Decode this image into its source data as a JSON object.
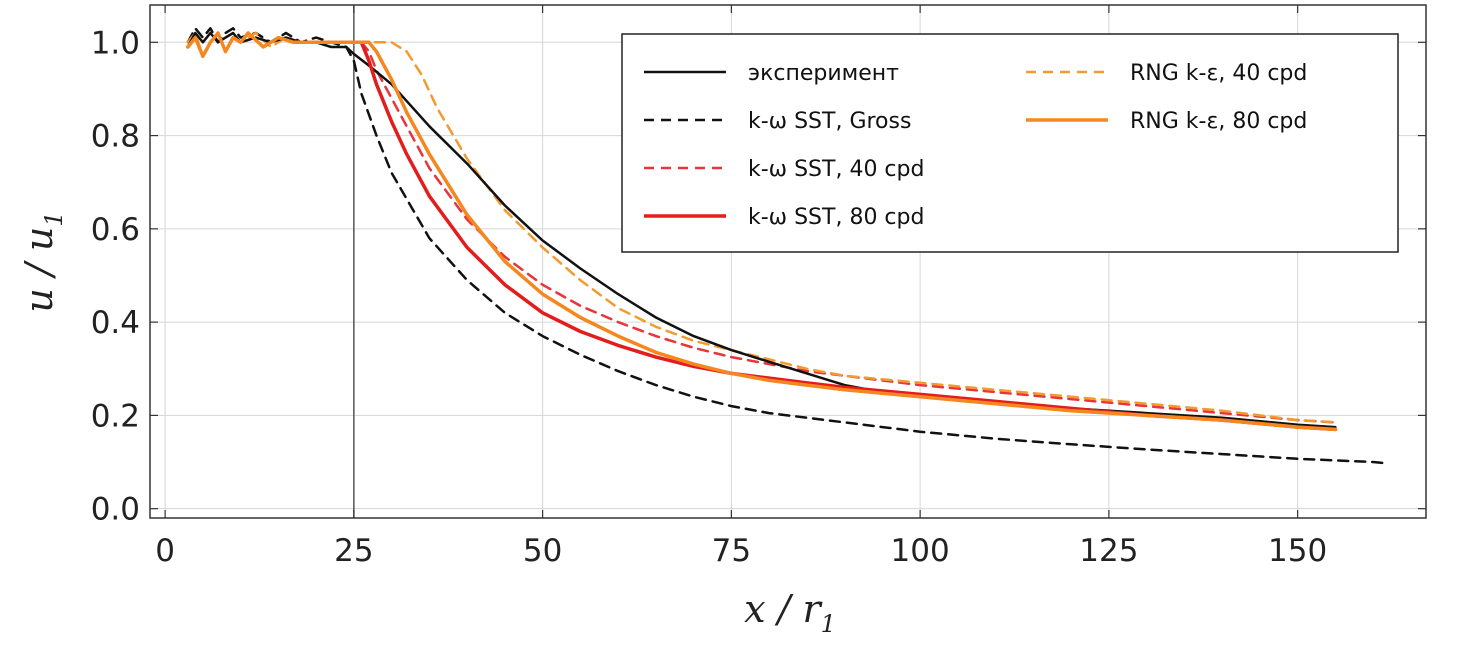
{
  "chart_data": {
    "type": "line",
    "xlabel": "x / r1",
    "ylabel": "u / u1",
    "xlabel_parts": [
      "x",
      " / ",
      "r",
      "1"
    ],
    "ylabel_parts": [
      "u",
      " / ",
      "u",
      "1"
    ],
    "xlim": [
      -2,
      167
    ],
    "ylim": [
      -0.02,
      1.08
    ],
    "xticks": [
      0,
      25,
      50,
      75,
      100,
      125,
      150
    ],
    "yticks": [
      0.0,
      0.2,
      0.4,
      0.6,
      0.8,
      1.0
    ],
    "xtick_labels": [
      "0",
      "25",
      "50",
      "75",
      "100",
      "125",
      "150"
    ],
    "ytick_labels": [
      "0.0",
      "0.2",
      "0.4",
      "0.6",
      "0.8",
      "1.0"
    ],
    "grid": true,
    "vertical_reference_line_x": 25,
    "legend_position": "top-right",
    "series": [
      {
        "name": "эксперимент",
        "color": "#111111",
        "dash": "solid",
        "width": 2.5,
        "points": [
          [
            3,
            0.99
          ],
          [
            4,
            1.02
          ],
          [
            5,
            1.0
          ],
          [
            6,
            1.02
          ],
          [
            7,
            1.0
          ],
          [
            8,
            1.01
          ],
          [
            9,
            1.02
          ],
          [
            10,
            1.0
          ],
          [
            12,
            1.01
          ],
          [
            14,
            1.0
          ],
          [
            16,
            1.01
          ],
          [
            18,
            1.0
          ],
          [
            20,
            1.0
          ],
          [
            22,
            0.99
          ],
          [
            24,
            0.99
          ],
          [
            25,
            0.975
          ],
          [
            27,
            0.95
          ],
          [
            30,
            0.91
          ],
          [
            35,
            0.82
          ],
          [
            40,
            0.74
          ],
          [
            45,
            0.65
          ],
          [
            50,
            0.575
          ],
          [
            55,
            0.515
          ],
          [
            60,
            0.46
          ],
          [
            65,
            0.41
          ],
          [
            70,
            0.37
          ],
          [
            75,
            0.34
          ],
          [
            80,
            0.315
          ],
          [
            85,
            0.29
          ],
          [
            90,
            0.265
          ],
          [
            95,
            0.25
          ],
          [
            100,
            0.245
          ],
          [
            110,
            0.23
          ],
          [
            120,
            0.215
          ],
          [
            130,
            0.205
          ],
          [
            140,
            0.195
          ],
          [
            150,
            0.18
          ],
          [
            155,
            0.175
          ]
        ]
      },
      {
        "name": "k-ω SST, Gross",
        "color": "#111111",
        "dash": "dashed",
        "width": 2.5,
        "points": [
          [
            3,
            1.0
          ],
          [
            4,
            1.03
          ],
          [
            5,
            1.01
          ],
          [
            6,
            1.03
          ],
          [
            7,
            1.0
          ],
          [
            8,
            1.02
          ],
          [
            9,
            1.03
          ],
          [
            10,
            1.01
          ],
          [
            12,
            1.02
          ],
          [
            14,
            1.0
          ],
          [
            16,
            1.02
          ],
          [
            18,
            1.0
          ],
          [
            20,
            1.01
          ],
          [
            22,
            1.0
          ],
          [
            24,
            0.99
          ],
          [
            25,
            0.96
          ],
          [
            26,
            0.89
          ],
          [
            28,
            0.8
          ],
          [
            30,
            0.72
          ],
          [
            35,
            0.58
          ],
          [
            40,
            0.49
          ],
          [
            45,
            0.42
          ],
          [
            50,
            0.37
          ],
          [
            55,
            0.33
          ],
          [
            60,
            0.295
          ],
          [
            65,
            0.265
          ],
          [
            70,
            0.24
          ],
          [
            75,
            0.22
          ],
          [
            80,
            0.205
          ],
          [
            90,
            0.185
          ],
          [
            100,
            0.165
          ],
          [
            110,
            0.15
          ],
          [
            120,
            0.138
          ],
          [
            130,
            0.127
          ],
          [
            140,
            0.117
          ],
          [
            150,
            0.107
          ],
          [
            160,
            0.1
          ],
          [
            162,
            0.097
          ]
        ]
      },
      {
        "name": "k-ω SST, 40 cpd",
        "color": "#e8343a",
        "dash": "dashed",
        "width": 2.5,
        "points": [
          [
            26,
            1.0
          ],
          [
            27,
            0.98
          ],
          [
            28,
            0.94
          ],
          [
            30,
            0.88
          ],
          [
            32,
            0.82
          ],
          [
            35,
            0.73
          ],
          [
            40,
            0.62
          ],
          [
            45,
            0.54
          ],
          [
            50,
            0.48
          ],
          [
            55,
            0.435
          ],
          [
            60,
            0.4
          ],
          [
            65,
            0.37
          ],
          [
            70,
            0.345
          ],
          [
            75,
            0.325
          ],
          [
            80,
            0.31
          ],
          [
            85,
            0.295
          ],
          [
            90,
            0.285
          ],
          [
            100,
            0.265
          ],
          [
            110,
            0.25
          ],
          [
            120,
            0.235
          ],
          [
            130,
            0.22
          ],
          [
            140,
            0.205
          ],
          [
            150,
            0.19
          ],
          [
            155,
            0.185
          ]
        ]
      },
      {
        "name": "k-ω SST, 80 cpd",
        "color": "#e31c1c",
        "dash": "solid",
        "width": 3.5,
        "points": [
          [
            26,
            1.0
          ],
          [
            27,
            0.96
          ],
          [
            28,
            0.91
          ],
          [
            30,
            0.83
          ],
          [
            32,
            0.76
          ],
          [
            35,
            0.67
          ],
          [
            40,
            0.56
          ],
          [
            45,
            0.48
          ],
          [
            50,
            0.42
          ],
          [
            55,
            0.38
          ],
          [
            60,
            0.35
          ],
          [
            65,
            0.325
          ],
          [
            70,
            0.305
          ],
          [
            75,
            0.29
          ],
          [
            80,
            0.28
          ],
          [
            85,
            0.27
          ],
          [
            90,
            0.26
          ],
          [
            100,
            0.245
          ],
          [
            110,
            0.23
          ],
          [
            120,
            0.215
          ],
          [
            130,
            0.2
          ],
          [
            140,
            0.19
          ],
          [
            150,
            0.175
          ],
          [
            155,
            0.17
          ]
        ]
      },
      {
        "name": "RNG k-ε, 40 cpd",
        "color": "#f39a2e",
        "dash": "dashed",
        "width": 2.5,
        "points": [
          [
            3,
            1.0
          ],
          [
            4,
            1.02
          ],
          [
            5,
            0.97
          ],
          [
            6,
            1.0
          ],
          [
            7,
            1.02
          ],
          [
            8,
            0.98
          ],
          [
            9,
            1.01
          ],
          [
            10,
            1.0
          ],
          [
            12,
            1.02
          ],
          [
            14,
            0.99
          ],
          [
            16,
            1.01
          ],
          [
            18,
            1.0
          ],
          [
            20,
            1.0
          ],
          [
            22,
            1.0
          ],
          [
            25,
            1.0
          ],
          [
            28,
            1.0
          ],
          [
            30,
            1.0
          ],
          [
            32,
            0.98
          ],
          [
            34,
            0.93
          ],
          [
            36,
            0.86
          ],
          [
            40,
            0.75
          ],
          [
            45,
            0.64
          ],
          [
            50,
            0.56
          ],
          [
            55,
            0.49
          ],
          [
            60,
            0.43
          ],
          [
            65,
            0.39
          ],
          [
            70,
            0.36
          ],
          [
            75,
            0.34
          ],
          [
            80,
            0.32
          ],
          [
            85,
            0.3
          ],
          [
            90,
            0.285
          ],
          [
            100,
            0.27
          ],
          [
            110,
            0.255
          ],
          [
            120,
            0.24
          ],
          [
            130,
            0.225
          ],
          [
            140,
            0.21
          ],
          [
            150,
            0.19
          ],
          [
            155,
            0.185
          ]
        ]
      },
      {
        "name": "RNG k-ε, 80 cpd",
        "color": "#f5871f",
        "dash": "solid",
        "width": 3.5,
        "points": [
          [
            3,
            0.99
          ],
          [
            4,
            1.01
          ],
          [
            5,
            0.97
          ],
          [
            6,
            1.0
          ],
          [
            7,
            1.02
          ],
          [
            8,
            0.98
          ],
          [
            9,
            1.01
          ],
          [
            10,
            1.0
          ],
          [
            11,
            1.02
          ],
          [
            13,
            0.99
          ],
          [
            15,
            1.01
          ],
          [
            17,
            1.0
          ],
          [
            19,
            1.0
          ],
          [
            22,
            1.0
          ],
          [
            25,
            1.0
          ],
          [
            27,
            1.0
          ],
          [
            28,
            0.98
          ],
          [
            30,
            0.92
          ],
          [
            32,
            0.85
          ],
          [
            35,
            0.76
          ],
          [
            40,
            0.63
          ],
          [
            45,
            0.53
          ],
          [
            50,
            0.46
          ],
          [
            55,
            0.41
          ],
          [
            60,
            0.37
          ],
          [
            65,
            0.335
          ],
          [
            70,
            0.31
          ],
          [
            75,
            0.29
          ],
          [
            80,
            0.275
          ],
          [
            85,
            0.265
          ],
          [
            90,
            0.255
          ],
          [
            100,
            0.24
          ],
          [
            110,
            0.225
          ],
          [
            120,
            0.21
          ],
          [
            130,
            0.2
          ],
          [
            140,
            0.19
          ],
          [
            150,
            0.175
          ],
          [
            155,
            0.17
          ]
        ]
      }
    ],
    "legend": {
      "columns": [
        [
          "эксперимент",
          "k-ω SST, Gross",
          "k-ω SST, 40 cpd",
          "k-ω SST, 80 cpd"
        ],
        [
          "RNG k-ε, 40 cpd",
          "RNG k-ε, 80 cpd"
        ]
      ]
    }
  }
}
